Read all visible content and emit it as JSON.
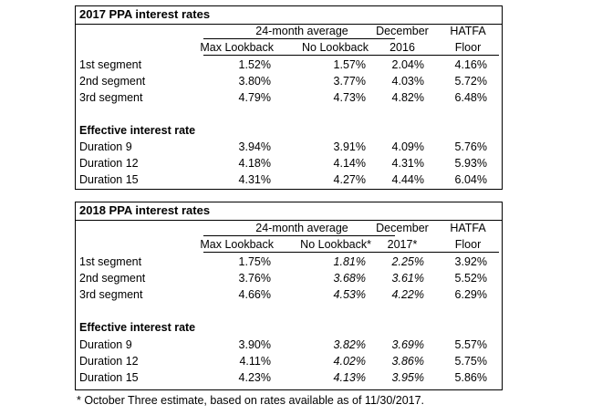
{
  "tables": [
    {
      "title": "2017 PPA interest rates",
      "group_header": "24-month average",
      "col_headers": [
        {
          "line1": "",
          "line2": "Max Lookback"
        },
        {
          "line1": "",
          "line2": "No Lookback"
        },
        {
          "line1": "December",
          "line2": "2016"
        },
        {
          "line1": "HATFA",
          "line2": "Floor"
        }
      ],
      "segments": [
        {
          "label": "1st segment",
          "values": [
            "1.52%",
            "1.57%",
            "2.04%",
            "4.16%"
          ]
        },
        {
          "label": "2nd segment",
          "values": [
            "3.80%",
            "3.77%",
            "4.03%",
            "5.72%"
          ]
        },
        {
          "label": "3rd segment",
          "values": [
            "4.79%",
            "4.73%",
            "4.82%",
            "6.48%"
          ]
        }
      ],
      "effective_heading": "Effective interest rate",
      "durations": [
        {
          "label": "Duration 9",
          "values": [
            "3.94%",
            "3.91%",
            "4.09%",
            "5.76%"
          ]
        },
        {
          "label": "Duration 12",
          "values": [
            "4.18%",
            "4.14%",
            "4.31%",
            "5.93%"
          ]
        },
        {
          "label": "Duration 15",
          "values": [
            "4.31%",
            "4.27%",
            "4.44%",
            "6.04%"
          ]
        }
      ]
    },
    {
      "title": "2018 PPA interest rates",
      "group_header": "24-month average",
      "col_headers": [
        {
          "line1": "",
          "line2": "Max Lookback"
        },
        {
          "line1": "",
          "line2": "No Lookback*"
        },
        {
          "line1": "December",
          "line2": "2017*"
        },
        {
          "line1": "HATFA",
          "line2": "Floor"
        }
      ],
      "segments": [
        {
          "label": "1st segment",
          "values": [
            "1.75%",
            "1.81%",
            "2.25%",
            "3.92%"
          ]
        },
        {
          "label": "2nd segment",
          "values": [
            "3.76%",
            "3.68%",
            "3.61%",
            "5.52%"
          ]
        },
        {
          "label": "3rd segment",
          "values": [
            "4.66%",
            "4.53%",
            "4.22%",
            "6.29%"
          ]
        }
      ],
      "effective_heading": "Effective interest rate",
      "durations": [
        {
          "label": "Duration 9",
          "values": [
            "3.90%",
            "3.82%",
            "3.69%",
            "5.57%"
          ]
        },
        {
          "label": "Duration 12",
          "values": [
            "4.11%",
            "4.02%",
            "3.86%",
            "5.75%"
          ]
        },
        {
          "label": "Duration 15",
          "values": [
            "4.23%",
            "4.13%",
            "3.95%",
            "5.86%"
          ]
        }
      ]
    }
  ],
  "footnote": "* October Three estimate, based on rates available as of 11/30/2017."
}
